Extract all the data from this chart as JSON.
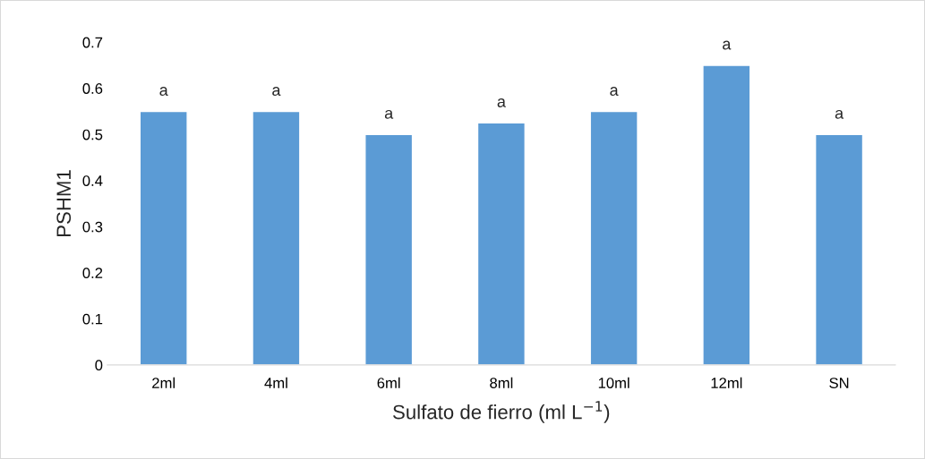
{
  "chart_data": {
    "type": "bar",
    "categories": [
      "2ml",
      "4ml",
      "6ml",
      "8ml",
      "10ml",
      "12ml",
      "SN"
    ],
    "values": [
      0.55,
      0.55,
      0.5,
      0.525,
      0.55,
      0.65,
      0.5
    ],
    "color": "#5b9bd5",
    "xlabel": "Sulfato de fierro (ml L$^{−1}$)",
    "ylabel": "PSHM1",
    "ylim": [
      0,
      0.7
    ],
    "yticks": [
      {
        "value": 0,
        "label": "0"
      },
      0.1,
      0.2,
      0.3,
      0.4,
      0.5,
      0.6,
      0.7
    ],
    "grid": false,
    "annotations": [
      {
        "text": "a",
        "x": "2ml",
        "y": 0.55
      },
      {
        "text": "a",
        "x": "4ml",
        "y": 0.55
      },
      {
        "text": "a",
        "x": "6ml",
        "y": 0.5
      },
      {
        "text": "a",
        "x": "8ml",
        "y": 0.525
      },
      {
        "text": "a",
        "x": "10ml",
        "y": 0.55
      },
      {
        "text": "a",
        "x": "12ml",
        "y": 0.65
      },
      {
        "text": "a",
        "x": "SN",
        "y": 0.5
      }
    ]
  }
}
